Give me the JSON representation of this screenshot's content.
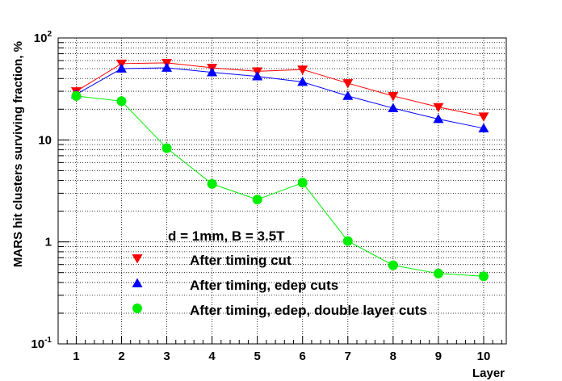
{
  "chart_data": {
    "type": "line",
    "title": "",
    "xlabel": "Layer",
    "ylabel": "MARS hit clusters surviving fraction, %",
    "yscale": "log",
    "xlim": [
      0.6,
      10.5
    ],
    "ylim": [
      0.1,
      100
    ],
    "grid": true,
    "x": [
      1,
      2,
      3,
      4,
      5,
      6,
      7,
      8,
      9,
      10
    ],
    "x_tick_labels": [
      "1",
      "2",
      "3",
      "4",
      "5",
      "6",
      "7",
      "8",
      "9",
      "10"
    ],
    "y_tick_labels": [
      {
        "base": "10",
        "exp": "-1"
      },
      {
        "base": "1",
        "exp": ""
      },
      {
        "base": "10",
        "exp": ""
      },
      {
        "base": "10",
        "exp": "2"
      }
    ],
    "legend_header": "d = 1mm, B = 3.5T",
    "legend_position": "center-left",
    "series": [
      {
        "name": "After timing cut",
        "color": "#ff0000",
        "marker": "triangle-down",
        "values": [
          30,
          56,
          57,
          51,
          47,
          49,
          36,
          27,
          21,
          17
        ]
      },
      {
        "name": "After timing, edep cuts",
        "color": "#0000ff",
        "marker": "triangle-up",
        "values": [
          28,
          50,
          51,
          46,
          42,
          37,
          27,
          20.5,
          16,
          13
        ]
      },
      {
        "name": "After timing, edep, double layer cuts",
        "color": "#00ee00",
        "marker": "circle",
        "values": [
          27,
          24,
          8.3,
          3.7,
          2.6,
          3.8,
          1.02,
          0.59,
          0.49,
          0.46
        ]
      }
    ]
  }
}
